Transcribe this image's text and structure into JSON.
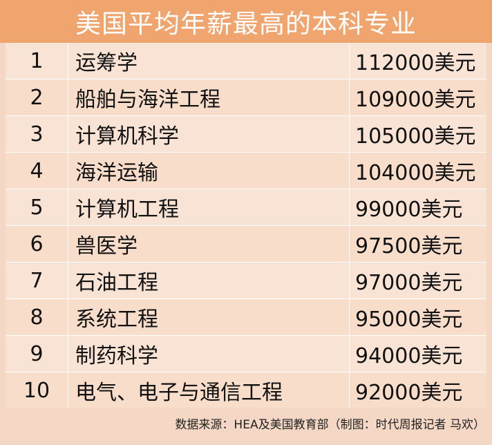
{
  "title": "美国平均年薪最高的本科专业",
  "rows": [
    {
      "rank": "1",
      "major": "运筹学",
      "salary": "112000美元"
    },
    {
      "rank": "2",
      "major": "船舶与海洋工程",
      "salary": "109000美元"
    },
    {
      "rank": "3",
      "major": "计算机科学",
      "salary": "105000美元"
    },
    {
      "rank": "4",
      "major": "海洋运输",
      "salary": "104000美元"
    },
    {
      "rank": "5",
      "major": "计算机工程",
      "salary": "99000美元"
    },
    {
      "rank": "6",
      "major": "兽医学",
      "salary": "97500美元"
    },
    {
      "rank": "7",
      "major": "石油工程",
      "salary": "97000美元"
    },
    {
      "rank": "8",
      "major": "系统工程",
      "salary": "95000美元"
    },
    {
      "rank": "9",
      "major": "制药科学",
      "salary": "94000美元"
    },
    {
      "rank": "10",
      "major": "电气、电子与通信工程",
      "salary": "92000美元"
    }
  ],
  "source": "数据来源：HEA及美国教育部（制图：时代周报记者 马欢）",
  "colors": {
    "title_background": "#f0a56f",
    "title_text": "#ffffff",
    "row_background": "#f9e3d5",
    "row_divider": "#ffffff"
  }
}
